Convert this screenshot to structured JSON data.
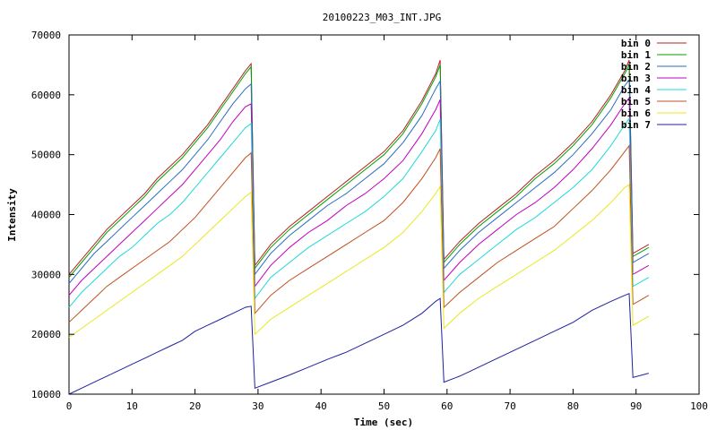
{
  "chart_data": {
    "type": "line",
    "title": "20100223_M03_INT.JPG",
    "xlabel": "Time (sec)",
    "ylabel": "Intensity",
    "xlim": [
      0,
      100
    ],
    "ylim": [
      10000,
      70000
    ],
    "xticks": [
      0,
      10,
      20,
      30,
      40,
      50,
      60,
      70,
      80,
      90,
      100
    ],
    "yticks": [
      10000,
      20000,
      30000,
      40000,
      50000,
      60000,
      70000
    ],
    "grid": false,
    "legend_position": "top-right",
    "series": [
      {
        "name": "bin 0",
        "color": "#b22222",
        "x": [
          0,
          2,
          4,
          6,
          8,
          10,
          12,
          14,
          16,
          18,
          20,
          22,
          24,
          26,
          28,
          28.9,
          29.5,
          32,
          35,
          38,
          41,
          44,
          47,
          50,
          53,
          56,
          58.2,
          58.9,
          59.5,
          62,
          65,
          68,
          71,
          74,
          77,
          80,
          83,
          86,
          88.2,
          88.9,
          89.5,
          92
        ],
        "y": [
          30000,
          32500,
          35000,
          37500,
          39500,
          41500,
          43500,
          46000,
          48000,
          50000,
          52500,
          55000,
          58000,
          61000,
          64000,
          65200,
          31500,
          35000,
          38000,
          40500,
          43000,
          45500,
          48000,
          50500,
          54000,
          59000,
          63500,
          65800,
          32500,
          35500,
          38500,
          41000,
          43500,
          46500,
          49000,
          52000,
          55500,
          60000,
          64000,
          65800,
          33500,
          35000
        ]
      },
      {
        "name": "bin 1",
        "color": "#00a000",
        "x": [
          0,
          2,
          4,
          6,
          8,
          10,
          12,
          14,
          16,
          18,
          20,
          22,
          24,
          26,
          28,
          28.9,
          29.5,
          32,
          35,
          38,
          41,
          44,
          47,
          50,
          53,
          56,
          58.2,
          58.9,
          59.5,
          62,
          65,
          68,
          71,
          74,
          77,
          80,
          83,
          86,
          88.2,
          88.9,
          89.5,
          92
        ],
        "y": [
          29500,
          32000,
          34500,
          37000,
          39000,
          41000,
          43000,
          45500,
          47500,
          49500,
          52000,
          54500,
          57500,
          60500,
          63500,
          64700,
          31000,
          34500,
          37500,
          40000,
          42500,
          45000,
          47500,
          50000,
          53500,
          58500,
          63000,
          65000,
          32000,
          35000,
          38000,
          40500,
          43000,
          46000,
          48500,
          51500,
          55000,
          59500,
          63500,
          65000,
          33000,
          34500
        ]
      },
      {
        "name": "bin 2",
        "color": "#2a6cc0",
        "x": [
          0,
          2,
          4,
          6,
          8,
          10,
          12,
          14,
          16,
          18,
          20,
          22,
          24,
          26,
          28,
          28.9,
          29.5,
          32,
          35,
          38,
          41,
          44,
          47,
          50,
          53,
          56,
          58.2,
          58.9,
          59.5,
          62,
          65,
          68,
          71,
          74,
          77,
          80,
          83,
          86,
          88.2,
          88.9,
          89.5,
          92
        ],
        "y": [
          28500,
          31000,
          33500,
          35500,
          37500,
          39500,
          41500,
          43500,
          45500,
          47500,
          50000,
          52500,
          55500,
          58500,
          61000,
          61800,
          30000,
          33500,
          36500,
          39000,
          41500,
          43500,
          46000,
          48500,
          52000,
          56500,
          61000,
          62300,
          31000,
          34000,
          37000,
          39500,
          42000,
          44500,
          47000,
          50000,
          53500,
          57500,
          61500,
          62500,
          32000,
          33500
        ]
      },
      {
        "name": "bin 3",
        "color": "#c000c0",
        "x": [
          0,
          2,
          4,
          6,
          8,
          10,
          12,
          14,
          16,
          18,
          20,
          22,
          24,
          26,
          28,
          28.9,
          29.5,
          32,
          35,
          38,
          41,
          44,
          47,
          50,
          53,
          56,
          58.2,
          58.9,
          59.5,
          62,
          65,
          68,
          71,
          74,
          77,
          80,
          83,
          86,
          88.2,
          88.9,
          89.5,
          92
        ],
        "y": [
          26500,
          29000,
          31000,
          33000,
          35000,
          37000,
          39000,
          41000,
          43000,
          45000,
          47500,
          50000,
          52500,
          55500,
          58000,
          58500,
          28000,
          31500,
          34500,
          37000,
          39000,
          41500,
          43500,
          46000,
          49000,
          53500,
          57500,
          59200,
          29000,
          32000,
          35000,
          37500,
          40000,
          42000,
          44500,
          47500,
          51000,
          55000,
          58500,
          59500,
          30000,
          31500
        ]
      },
      {
        "name": "bin 4",
        "color": "#20d8d8",
        "x": [
          0,
          2,
          4,
          6,
          8,
          10,
          12,
          14,
          16,
          18,
          20,
          22,
          24,
          26,
          28,
          28.9,
          29.5,
          32,
          35,
          38,
          41,
          44,
          47,
          50,
          53,
          56,
          58.2,
          58.9,
          59.5,
          62,
          65,
          68,
          71,
          74,
          77,
          80,
          83,
          86,
          88.2,
          88.9,
          89.5,
          92
        ],
        "y": [
          24500,
          27000,
          29000,
          31000,
          33000,
          34500,
          36500,
          38500,
          40000,
          42000,
          44500,
          47000,
          49500,
          52000,
          54500,
          55200,
          26000,
          29500,
          32000,
          34500,
          36500,
          38500,
          40500,
          43000,
          46000,
          50500,
          54000,
          55900,
          27000,
          30000,
          32500,
          35000,
          37500,
          39500,
          42000,
          44500,
          47500,
          51500,
          55000,
          56000,
          28000,
          29500
        ]
      },
      {
        "name": "bin 5",
        "color": "#c05020",
        "x": [
          0,
          2,
          4,
          6,
          8,
          10,
          12,
          14,
          16,
          18,
          20,
          22,
          24,
          26,
          28,
          28.9,
          29.5,
          32,
          35,
          38,
          41,
          44,
          47,
          50,
          53,
          56,
          58.2,
          58.9,
          59.5,
          62,
          65,
          68,
          71,
          74,
          77,
          80,
          83,
          86,
          88.2,
          88.9,
          89.5,
          92
        ],
        "y": [
          22000,
          24000,
          26000,
          28000,
          29500,
          31000,
          32500,
          34000,
          35500,
          37500,
          39500,
          42000,
          44500,
          47000,
          49500,
          50300,
          23500,
          26500,
          29000,
          31000,
          33000,
          35000,
          37000,
          39000,
          42000,
          46000,
          49500,
          51000,
          24500,
          27000,
          29500,
          32000,
          34000,
          36000,
          38000,
          41000,
          44000,
          47500,
          50500,
          51500,
          25000,
          26500
        ]
      },
      {
        "name": "bin 6",
        "color": "#e8e820",
        "x": [
          0,
          2,
          4,
          6,
          8,
          10,
          12,
          14,
          16,
          18,
          20,
          22,
          24,
          26,
          28,
          28.9,
          29.5,
          32,
          35,
          38,
          41,
          44,
          47,
          50,
          53,
          56,
          58.2,
          58.9,
          59.5,
          62,
          65,
          68,
          71,
          74,
          77,
          80,
          83,
          86,
          88.2,
          88.9,
          89.5,
          92
        ],
        "y": [
          19500,
          21000,
          22500,
          24000,
          25500,
          27000,
          28500,
          30000,
          31500,
          33000,
          35000,
          37000,
          39000,
          41000,
          43000,
          43700,
          20000,
          22500,
          24500,
          26500,
          28500,
          30500,
          32500,
          34500,
          37000,
          40500,
          43500,
          44700,
          21000,
          23500,
          26000,
          28000,
          30000,
          32000,
          34000,
          36500,
          39000,
          42000,
          44500,
          45000,
          21500,
          23000
        ]
      },
      {
        "name": "bin 7",
        "color": "#2020a0",
        "x": [
          0,
          2,
          4,
          6,
          8,
          10,
          12,
          14,
          16,
          18,
          20,
          22,
          24,
          26,
          28,
          28.9,
          29.5,
          32,
          35,
          38,
          41,
          44,
          47,
          50,
          53,
          56,
          58.2,
          58.9,
          59.5,
          62,
          65,
          68,
          71,
          74,
          77,
          80,
          83,
          86,
          88.2,
          88.9,
          89.5,
          92
        ],
        "y": [
          10000,
          11000,
          12000,
          13000,
          14000,
          15000,
          16000,
          17000,
          18000,
          19000,
          20500,
          21500,
          22500,
          23500,
          24500,
          24700,
          11000,
          12000,
          13200,
          14500,
          15800,
          17000,
          18500,
          20000,
          21500,
          23500,
          25500,
          26000,
          12000,
          13000,
          14500,
          16000,
          17500,
          19000,
          20500,
          22000,
          24000,
          25500,
          26500,
          26800,
          12800,
          13500
        ]
      }
    ]
  }
}
